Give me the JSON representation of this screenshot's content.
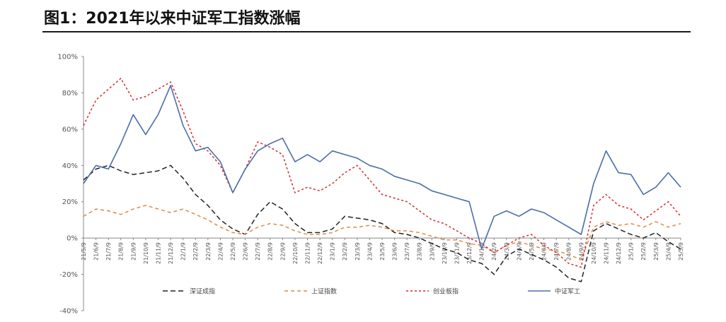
{
  "title": "图1：2021年以来中证军工指数涨幅",
  "chart_data": {
    "type": "line",
    "ylim": [
      -40,
      100
    ],
    "yticks": [
      "100%",
      "80%",
      "60%",
      "40%",
      "20%",
      "0%",
      "-20%",
      "-40%"
    ],
    "ytick_values": [
      100,
      80,
      60,
      40,
      20,
      0,
      -20,
      -40
    ],
    "x_categories": [
      "21/5/9",
      "21/6/9",
      "21/7/9",
      "21/8/9",
      "21/9/9",
      "21/10/9",
      "21/11/9",
      "21/12/9",
      "22/1/9",
      "22/2/9",
      "22/3/9",
      "22/4/9",
      "22/5/9",
      "22/6/9",
      "22/7/9",
      "22/8/9",
      "22/9/9",
      "22/10/9",
      "22/11/9",
      "22/12/9",
      "23/1/9",
      "23/2/9",
      "23/3/9",
      "23/4/9",
      "23/5/9",
      "23/6/9",
      "23/7/9",
      "23/8/9",
      "23/9/9",
      "23/10/9",
      "23/11/9",
      "23/12/9",
      "24/1/9",
      "24/2/9",
      "24/3/9",
      "24/4/9",
      "24/5/9",
      "24/6/9",
      "24/7/9",
      "24/8/9",
      "24/9/9",
      "24/10/9",
      "24/11/9",
      "24/12/9",
      "25/1/9",
      "25/2/9",
      "25/3/9",
      "25/4/9",
      "25/5/9"
    ],
    "x_tick_labels": [
      "21/5/9",
      "21/6/9",
      "21/7/9",
      "21/8/9",
      "21/9/9",
      "21/10/9",
      "21/11/9",
      "21/12/9",
      "22/1/9",
      "22/2/9",
      "22/3/9",
      "22/4/9",
      "22/5/9",
      "22/6/9",
      "22/7/9",
      "22/8/9",
      "22/9/9",
      "22/10/9",
      "22/11/9",
      "22/12/9",
      "23/1/9",
      "23/2/9",
      "23/3/9",
      "23/4/9",
      "23/5/9",
      "23/6/9",
      "23/7/9",
      "23/8/9",
      "23/9/9",
      "23/10/9",
      "23/11/9",
      "23/12/9",
      "24/1/9",
      "24/2/9",
      "24/3/9",
      "24/4/9",
      "24/5/9",
      "24/6/9",
      "24/7/9",
      "24/8/9",
      "24/9/9",
      "24/10/9",
      "24/11/9",
      "24/12/9",
      "25/1/9",
      "25/2/9",
      "25/3/9",
      "25/4/9",
      "25/5/9"
    ],
    "grid": false,
    "legend_position": "bottom",
    "series": [
      {
        "name": "深证成指",
        "color": "#222222",
        "dash": "7,4",
        "values": [
          32,
          38,
          40,
          37,
          35,
          36,
          37,
          40,
          33,
          24,
          18,
          10,
          5,
          2,
          13,
          20,
          16,
          8,
          3,
          3,
          5,
          12,
          11,
          10,
          8,
          3,
          2,
          0,
          -3,
          -6,
          -8,
          -12,
          -14,
          -20,
          -10,
          -6,
          -9,
          -12,
          -16,
          -22,
          -24,
          4,
          8,
          5,
          2,
          0,
          3,
          -2,
          -6
        ]
      },
      {
        "name": "上证指数",
        "color": "#e0894a",
        "dash": "5,4",
        "values": [
          12,
          16,
          15,
          13,
          16,
          18,
          16,
          14,
          16,
          13,
          10,
          6,
          3,
          2,
          6,
          8,
          7,
          4,
          2,
          2,
          3,
          6,
          6,
          7,
          6,
          4,
          4,
          3,
          1,
          -1,
          -1,
          -3,
          -4,
          -8,
          -4,
          -2,
          -4,
          -6,
          -7,
          -9,
          -12,
          6,
          9,
          7,
          8,
          6,
          9,
          6,
          8
        ]
      },
      {
        "name": "创业板指",
        "color": "#d62c2c",
        "dash": "3,3",
        "values": [
          62,
          76,
          82,
          88,
          76,
          78,
          82,
          86,
          70,
          52,
          48,
          40,
          25,
          38,
          53,
          50,
          46,
          25,
          28,
          26,
          30,
          36,
          40,
          32,
          24,
          22,
          20,
          15,
          10,
          8,
          4,
          0,
          -3,
          -8,
          -4,
          0,
          2,
          -4,
          -8,
          -14,
          -16,
          18,
          24,
          18,
          16,
          10,
          15,
          20,
          12
        ]
      },
      {
        "name": "中证军工",
        "color": "#4a6ea9",
        "dash": "",
        "values": [
          30,
          40,
          38,
          52,
          68,
          57,
          68,
          84,
          62,
          48,
          50,
          42,
          25,
          38,
          48,
          52,
          55,
          42,
          46,
          42,
          48,
          46,
          44,
          40,
          38,
          34,
          32,
          30,
          26,
          24,
          22,
          20,
          -6,
          12,
          15,
          12,
          16,
          14,
          10,
          6,
          2,
          30,
          48,
          36,
          35,
          24,
          28,
          36,
          28
        ]
      }
    ]
  }
}
